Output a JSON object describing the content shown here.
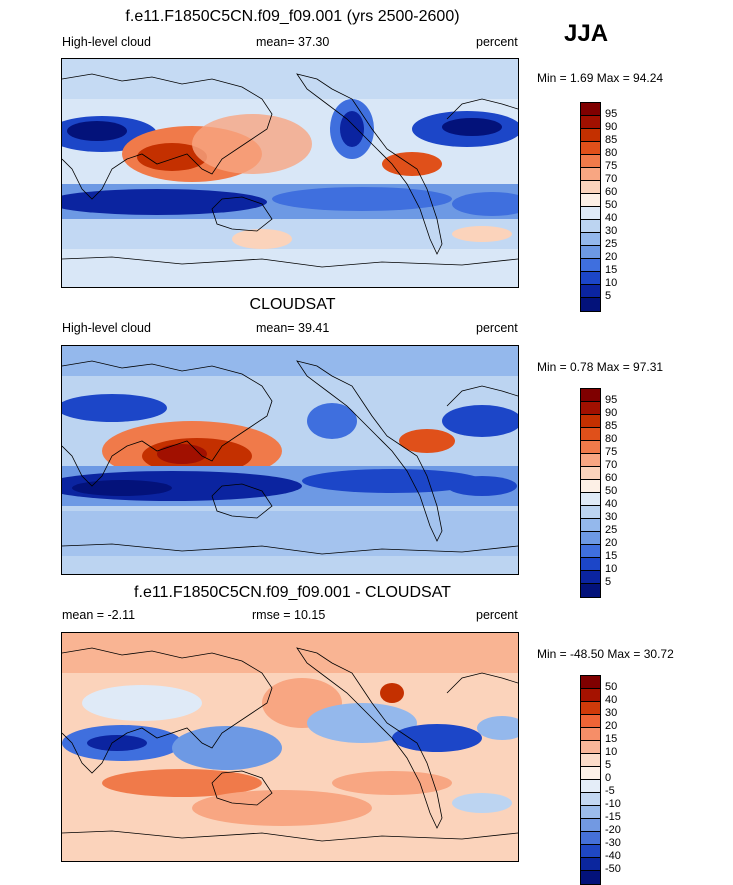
{
  "season": "JJA",
  "panels": [
    {
      "title": "f.e11.F1850C5CN.f09_f09.001 (yrs 2500-2600)",
      "left_label": "High-level cloud",
      "center_label": "mean=  37.30",
      "right_label": "percent",
      "minmax": "Min =   1.69 Max =  94.24",
      "colorbar_ticks": [
        "95",
        "90",
        "85",
        "80",
        "75",
        "70",
        "60",
        "50",
        "40",
        "30",
        "25",
        "20",
        "15",
        "10",
        "5"
      ]
    },
    {
      "title": "CLOUDSAT",
      "left_label": "High-level cloud",
      "center_label": "mean=  39.41",
      "right_label": "percent",
      "minmax": "Min =   0.78 Max =  97.31",
      "colorbar_ticks": [
        "95",
        "90",
        "85",
        "80",
        "75",
        "70",
        "60",
        "50",
        "40",
        "30",
        "25",
        "20",
        "15",
        "10",
        "5"
      ]
    },
    {
      "title": "f.e11.F1850C5CN.f09_f09.001 - CLOUDSAT",
      "left_label": "mean =  -2.11",
      "center_label": "rmse =  10.15",
      "right_label": "percent",
      "minmax": "Min = -48.50 Max =  30.72",
      "colorbar_ticks": [
        "50",
        "40",
        "30",
        "20",
        "15",
        "10",
        "5",
        "0",
        "-5",
        "-10",
        "-15",
        "-20",
        "-30",
        "-40",
        "-50"
      ]
    }
  ],
  "colors": {
    "scale_abs": [
      "#7f0000",
      "#a11000",
      "#c43000",
      "#e0501a",
      "#f07a4a",
      "#f8a682",
      "#fbd3bb",
      "#fdf0e6",
      "#dfeaf7",
      "#bcd4f1",
      "#94b8ec",
      "#6d99e4",
      "#3f6fde",
      "#1c46c8",
      "#0b24a0",
      "#03127a"
    ],
    "scale_diff": [
      "#7f0000",
      "#a51200",
      "#cf3a0a",
      "#ee6436",
      "#f68e68",
      "#f9b699",
      "#fcdcc9",
      "#fdf1e8",
      "#e4edf8",
      "#c3d7f2",
      "#9cbceb",
      "#7299e2",
      "#4570d8",
      "#1f47c4",
      "#0b269e",
      "#03127a"
    ],
    "coastline": "#000000"
  }
}
